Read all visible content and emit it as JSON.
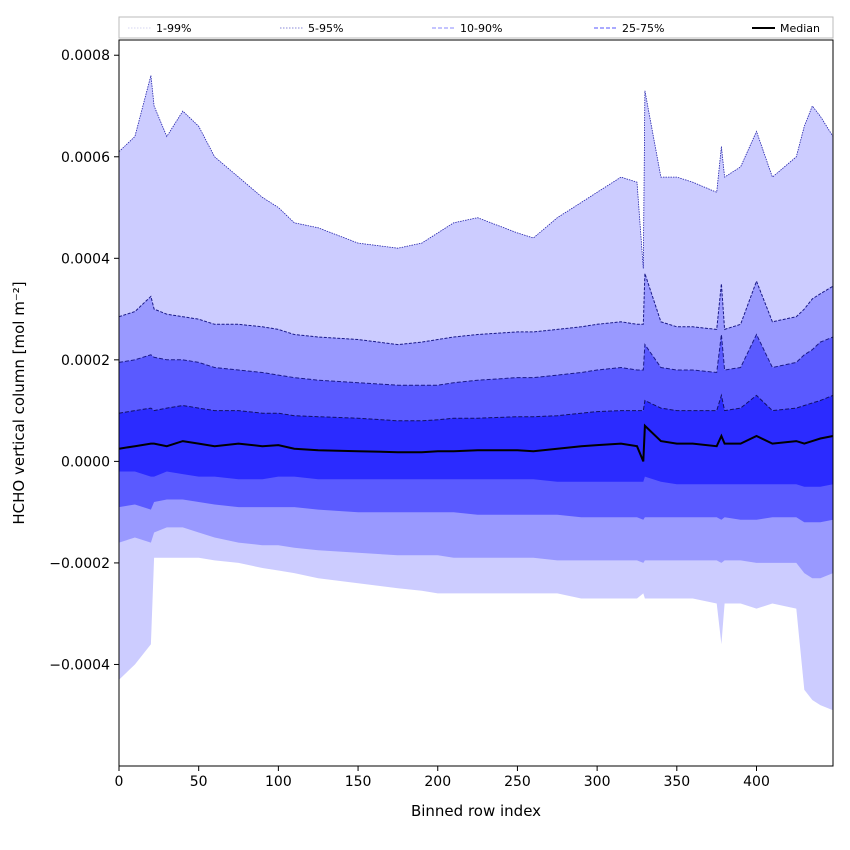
{
  "chart_data": {
    "type": "area",
    "title": "",
    "xlabel": "Binned row index",
    "ylabel": "HCHO vertical column [mol m⁻²]",
    "xlim": [
      0,
      448
    ],
    "ylim": [
      -0.0006,
      0.00083
    ],
    "x_ticks": [
      0,
      50,
      100,
      150,
      200,
      250,
      300,
      350,
      400
    ],
    "x_tick_labels": [
      "0",
      "50",
      "100",
      "150",
      "200",
      "250",
      "300",
      "350",
      "400"
    ],
    "y_ticks": [
      -0.0004,
      -0.0002,
      0.0,
      0.0002,
      0.0004,
      0.0006,
      0.0008
    ],
    "y_tick_labels": [
      "−0.0004",
      "−0.0002",
      "0.0000",
      "0.0002",
      "0.0004",
      "0.0006",
      "0.0008"
    ],
    "grid": false,
    "legend_position": "top",
    "legend": [
      {
        "label": "1-99%",
        "color": "#d6d6f0",
        "style": "dotted"
      },
      {
        "label": "5-95%",
        "color": "#8a8ad8",
        "style": "dotted"
      },
      {
        "label": "10-90%",
        "color": "#8888ff",
        "style": "dashed"
      },
      {
        "label": "25-75%",
        "color": "#5555ff",
        "style": "dashed"
      },
      {
        "label": "Median",
        "color": "#000000",
        "style": "solid"
      }
    ],
    "fill_colors": {
      "p5_p95": "#ccccff",
      "p10_p90": "#9999ff",
      "p25_p75": "#5a5aff",
      "inner": "#2b2bff"
    },
    "x": [
      0,
      10,
      20,
      22,
      30,
      40,
      50,
      60,
      75,
      90,
      100,
      110,
      125,
      150,
      175,
      190,
      200,
      210,
      225,
      250,
      260,
      275,
      290,
      300,
      315,
      325,
      329,
      330,
      340,
      350,
      360,
      375,
      378,
      380,
      390,
      400,
      410,
      425,
      430,
      435,
      440,
      448
    ],
    "series": [
      {
        "name": "Median",
        "values": [
          2.5e-05,
          3e-05,
          3.5e-05,
          3.5e-05,
          3e-05,
          4e-05,
          3.5e-05,
          3e-05,
          3.5e-05,
          3e-05,
          3.2e-05,
          2.5e-05,
          2.2e-05,
          2e-05,
          1.8e-05,
          1.8e-05,
          2e-05,
          2e-05,
          2.2e-05,
          2.2e-05,
          2e-05,
          2.5e-05,
          3e-05,
          3.2e-05,
          3.5e-05,
          3e-05,
          0.0,
          7e-05,
          4e-05,
          3.5e-05,
          3.5e-05,
          3e-05,
          5e-05,
          3.5e-05,
          3.5e-05,
          5e-05,
          3.5e-05,
          4e-05,
          3.5e-05,
          4e-05,
          4.5e-05,
          5e-05
        ]
      },
      {
        "name": "25-75%",
        "values": [
          9.5e-05,
          0.0001,
          0.000105,
          0.0001,
          0.000105,
          0.00011,
          0.000105,
          0.0001,
          0.0001,
          9.5e-05,
          9.5e-05,
          9e-05,
          8.8e-05,
          8.5e-05,
          8e-05,
          8e-05,
          8.2e-05,
          8.5e-05,
          8.5e-05,
          8.8e-05,
          8.8e-05,
          9e-05,
          9.5e-05,
          9.8e-05,
          0.0001,
          0.0001,
          0.0001,
          0.00012,
          0.000105,
          0.0001,
          0.0001,
          0.0001,
          0.00013,
          0.0001,
          0.000105,
          0.00013,
          0.0001,
          0.000105,
          0.00011,
          0.000115,
          0.00012,
          0.00013
        ]
      },
      {
        "name": "10-90%",
        "values": [
          0.000195,
          0.0002,
          0.00021,
          0.000205,
          0.0002,
          0.0002,
          0.000195,
          0.000185,
          0.00018,
          0.000175,
          0.00017,
          0.000165,
          0.00016,
          0.000155,
          0.00015,
          0.00015,
          0.00015,
          0.000155,
          0.00016,
          0.000165,
          0.000165,
          0.00017,
          0.000175,
          0.00018,
          0.000185,
          0.00018,
          0.00018,
          0.00023,
          0.000185,
          0.00018,
          0.00018,
          0.000175,
          0.00025,
          0.00018,
          0.000185,
          0.00025,
          0.000185,
          0.000195,
          0.00021,
          0.00022,
          0.000235,
          0.000245
        ]
      },
      {
        "name": "5-95%",
        "values": [
          0.000285,
          0.000295,
          0.000325,
          0.0003,
          0.00029,
          0.000285,
          0.00028,
          0.00027,
          0.00027,
          0.000265,
          0.00026,
          0.00025,
          0.000245,
          0.00024,
          0.00023,
          0.000235,
          0.00024,
          0.000245,
          0.00025,
          0.000255,
          0.000255,
          0.00026,
          0.000265,
          0.00027,
          0.000275,
          0.00027,
          0.00027,
          0.00037,
          0.000275,
          0.000265,
          0.000265,
          0.00026,
          0.00035,
          0.00026,
          0.00027,
          0.000355,
          0.000275,
          0.000285,
          0.0003,
          0.00032,
          0.00033,
          0.000345
        ]
      },
      {
        "name": "1-99%",
        "values": [
          0.00061,
          0.00064,
          0.00076,
          0.0007,
          0.00064,
          0.00069,
          0.00066,
          0.0006,
          0.00056,
          0.00052,
          0.0005,
          0.00047,
          0.00046,
          0.00043,
          0.00042,
          0.00043,
          0.00045,
          0.00047,
          0.00048,
          0.00045,
          0.00044,
          0.00048,
          0.00051,
          0.00053,
          0.00056,
          0.00055,
          0.00038,
          0.00073,
          0.00056,
          0.00056,
          0.00055,
          0.00053,
          0.00062,
          0.00056,
          0.00058,
          0.00065,
          0.00056,
          0.0006,
          0.00066,
          0.0007,
          0.00068,
          0.00064
        ]
      }
    ],
    "lower_band_values": {
      "p25": [
        -2e-05,
        -2e-05,
        -3e-05,
        -3e-05,
        -2e-05,
        -2.5e-05,
        -3e-05,
        -3e-05,
        -3.5e-05,
        -3.5e-05,
        -3e-05,
        -3e-05,
        -3.5e-05,
        -3.5e-05,
        -3.5e-05,
        -3.5e-05,
        -3.5e-05,
        -3.5e-05,
        -3.5e-05,
        -3.5e-05,
        -3.5e-05,
        -4e-05,
        -4e-05,
        -4e-05,
        -4e-05,
        -4e-05,
        -4e-05,
        -3e-05,
        -4e-05,
        -4.5e-05,
        -4.5e-05,
        -4.5e-05,
        -4.5e-05,
        -4.5e-05,
        -4.5e-05,
        -4.5e-05,
        -4.5e-05,
        -4.5e-05,
        -5e-05,
        -5e-05,
        -5e-05,
        -4.5e-05
      ],
      "p10": [
        -9e-05,
        -8.5e-05,
        -9.5e-05,
        -8e-05,
        -7.5e-05,
        -7.5e-05,
        -8e-05,
        -8.5e-05,
        -9e-05,
        -9e-05,
        -9e-05,
        -9e-05,
        -9.5e-05,
        -0.0001,
        -0.0001,
        -0.0001,
        -0.0001,
        -0.0001,
        -0.000105,
        -0.000105,
        -0.000105,
        -0.000105,
        -0.00011,
        -0.00011,
        -0.00011,
        -0.00011,
        -0.000115,
        -0.00011,
        -0.00011,
        -0.00011,
        -0.00011,
        -0.00011,
        -0.000115,
        -0.00011,
        -0.000115,
        -0.000115,
        -0.00011,
        -0.00011,
        -0.00012,
        -0.00012,
        -0.00012,
        -0.000115
      ],
      "p5": [
        -0.00016,
        -0.00015,
        -0.00016,
        -0.00014,
        -0.00013,
        -0.00013,
        -0.00014,
        -0.00015,
        -0.00016,
        -0.000165,
        -0.000165,
        -0.00017,
        -0.000175,
        -0.00018,
        -0.000185,
        -0.000185,
        -0.000185,
        -0.00019,
        -0.00019,
        -0.00019,
        -0.00019,
        -0.000195,
        -0.000195,
        -0.000195,
        -0.000195,
        -0.000195,
        -0.0002,
        -0.000195,
        -0.000195,
        -0.000195,
        -0.000195,
        -0.000195,
        -0.0002,
        -0.000195,
        -0.000195,
        -0.0002,
        -0.0002,
        -0.0002,
        -0.00022,
        -0.00023,
        -0.00023,
        -0.00022
      ],
      "p1": [
        -0.00043,
        -0.0004,
        -0.00036,
        -0.00019,
        -0.00019,
        -0.00019,
        -0.00019,
        -0.000195,
        -0.0002,
        -0.00021,
        -0.000215,
        -0.00022,
        -0.00023,
        -0.00024,
        -0.00025,
        -0.000255,
        -0.00026,
        -0.00026,
        -0.00026,
        -0.00026,
        -0.00026,
        -0.00026,
        -0.00027,
        -0.00027,
        -0.00027,
        -0.00027,
        -0.00026,
        -0.00027,
        -0.00027,
        -0.00027,
        -0.00027,
        -0.00028,
        -0.00036,
        -0.00028,
        -0.00028,
        -0.00029,
        -0.00028,
        -0.00029,
        -0.00045,
        -0.00047,
        -0.00048,
        -0.00049
      ]
    }
  }
}
